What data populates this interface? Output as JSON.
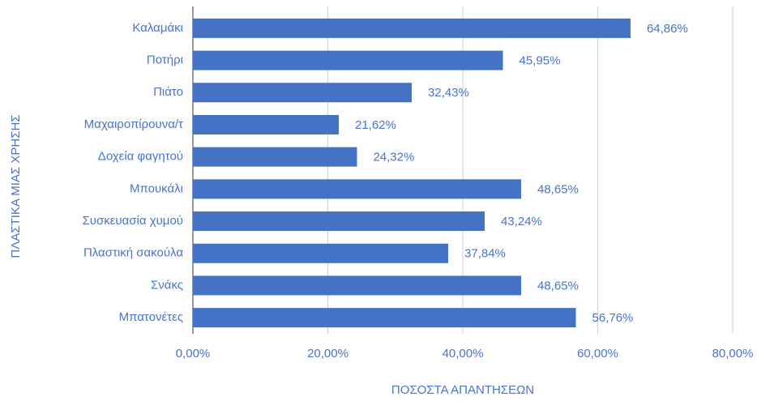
{
  "chart_data": {
    "type": "bar",
    "orientation": "horizontal",
    "x_label": "ΠΟΣΟΣΤΑ ΑΠΑΝΤΗΣΕΩΝ",
    "y_label": "ΠΛΑΣΤΙΚΑ ΜΙΑΣ ΧΡΗΣΗΣ",
    "categories": [
      "Καλαμάκι",
      "Ποτήρι",
      "Πιάτο",
      "Μαχαιροπίρουνα/τ",
      "Δοχεία φαγητού",
      "Μπουκάλι",
      "Συσκευασία χυμού",
      "Πλαστική σακούλα",
      "Σνάκς",
      "Μπατονέτες"
    ],
    "values": [
      64.86,
      45.95,
      32.43,
      21.62,
      24.32,
      48.65,
      43.24,
      37.84,
      48.65,
      56.76
    ],
    "value_labels": [
      "64,86%",
      "45,95%",
      "32,43%",
      "21,62%",
      "24,32%",
      "48,65%",
      "43,24%",
      "37,84%",
      "48,65%",
      "56,76%"
    ],
    "color": "#4472c4",
    "xlim": [
      0,
      80
    ],
    "xticks": [
      {
        "value": 0,
        "label": "0,00%"
      },
      {
        "value": 20,
        "label": "20,00%"
      },
      {
        "value": 40,
        "label": "40,00%"
      },
      {
        "value": 60,
        "label": "60,00%"
      },
      {
        "value": 80,
        "label": "80,00%"
      }
    ],
    "grid": true
  }
}
